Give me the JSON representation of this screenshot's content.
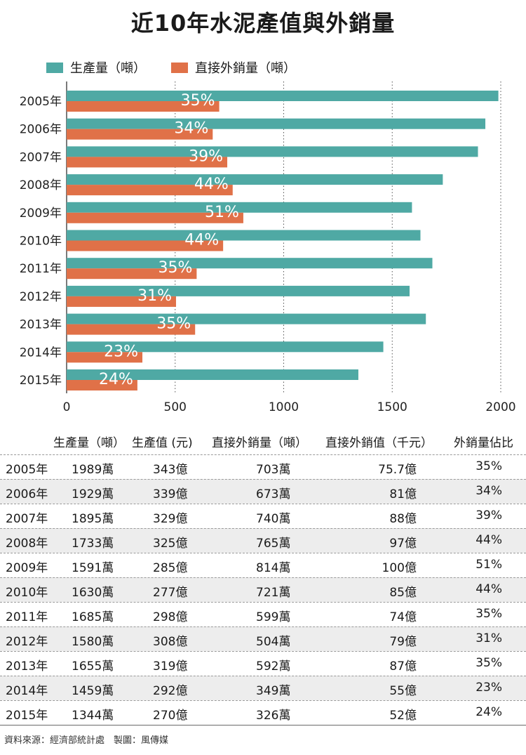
{
  "title": "近10年水泥產值與外銷量",
  "legend": {
    "production": "生產量（噸）",
    "export": "直接外銷量（噸）"
  },
  "colors": {
    "production": "#4fa9a4",
    "export": "#e07148"
  },
  "chart_data": {
    "type": "bar",
    "orientation": "horizontal",
    "categories": [
      "2005年",
      "2006年",
      "2007年",
      "2008年",
      "2009年",
      "2010年",
      "2011年",
      "2012年",
      "2013年",
      "2014年",
      "2015年"
    ],
    "series": [
      {
        "name": "生產量（噸）",
        "values": [
          1989,
          1929,
          1895,
          1733,
          1591,
          1630,
          1685,
          1580,
          1655,
          1459,
          1344
        ]
      },
      {
        "name": "直接外銷量（噸）",
        "values": [
          703,
          673,
          740,
          765,
          814,
          721,
          599,
          504,
          592,
          349,
          326
        ]
      }
    ],
    "bar_labels": [
      "35%",
      "34%",
      "39%",
      "44%",
      "51%",
      "44%",
      "35%",
      "31%",
      "35%",
      "23%",
      "24%"
    ],
    "xlim": [
      0,
      2000
    ],
    "xticks": [
      "0",
      "500",
      "1000",
      "1500",
      "2000"
    ],
    "grid": "vertical dotted"
  },
  "table": {
    "headers": [
      "生產量（噸）",
      "生產值 (元)",
      "直接外銷量（噸）",
      "直接外銷值（千元）",
      "外銷量佔比"
    ],
    "rows": [
      [
        "2005年",
        "1989萬",
        "343億",
        "703萬",
        "75.7億",
        "35%"
      ],
      [
        "2006年",
        "1929萬",
        "339億",
        "673萬",
        "81億",
        "34%"
      ],
      [
        "2007年",
        "1895萬",
        "329億",
        "740萬",
        "88億",
        "39%"
      ],
      [
        "2008年",
        "1733萬",
        "325億",
        "765萬",
        "97億",
        "44%"
      ],
      [
        "2009年",
        "1591萬",
        "285億",
        "814萬",
        "100億",
        "51%"
      ],
      [
        "2010年",
        "1630萬",
        "277億",
        "721萬",
        "85億",
        "44%"
      ],
      [
        "2011年",
        "1685萬",
        "298億",
        "599萬",
        "74億",
        "35%"
      ],
      [
        "2012年",
        "1580萬",
        "308億",
        "504萬",
        "79億",
        "31%"
      ],
      [
        "2013年",
        "1655萬",
        "319億",
        "592萬",
        "87億",
        "35%"
      ],
      [
        "2014年",
        "1459萬",
        "292億",
        "349萬",
        "55億",
        "23%"
      ],
      [
        "2015年",
        "1344萬",
        "270億",
        "326萬",
        "52億",
        "24%"
      ]
    ]
  },
  "source": "資料來源：經濟部統計處　製圖：風傳媒"
}
